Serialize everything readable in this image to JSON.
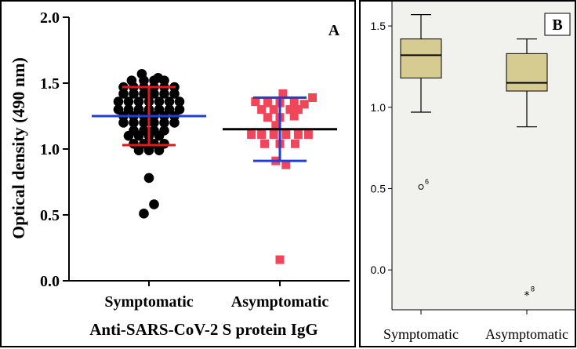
{
  "chart_data": [
    {
      "type": "scatter",
      "panel_label": "A",
      "ylabel": "Optical density (490 nm)",
      "xlabel": "Anti-SARS-CoV-2 S protein IgG",
      "ylim": [
        0.0,
        2.0
      ],
      "yticks": [
        "0.0",
        "0.5",
        "1.0",
        "1.5",
        "2.0"
      ],
      "categories": [
        "Symptomatic",
        "Asymptomatic"
      ],
      "series": [
        {
          "category": "Symptomatic",
          "marker": "circle",
          "color": "#000000",
          "mean": 1.25,
          "sd_low": 1.03,
          "sd_high": 1.47,
          "mean_color": "#1f3fd6",
          "sd_color": "#e0191f",
          "points": [
            {
              "o": -0.07,
              "y": 1.57
            },
            {
              "o": 0.09,
              "y": 1.54
            },
            {
              "o": -0.17,
              "y": 1.52
            },
            {
              "o": -0.05,
              "y": 1.52
            },
            {
              "o": 0.05,
              "y": 1.52
            },
            {
              "o": 0.15,
              "y": 1.52
            },
            {
              "o": -0.25,
              "y": 1.47
            },
            {
              "o": -0.15,
              "y": 1.47
            },
            {
              "o": -0.05,
              "y": 1.47
            },
            {
              "o": 0.05,
              "y": 1.47
            },
            {
              "o": 0.15,
              "y": 1.47
            },
            {
              "o": 0.25,
              "y": 1.47
            },
            {
              "o": -0.25,
              "y": 1.42
            },
            {
              "o": -0.15,
              "y": 1.42
            },
            {
              "o": -0.05,
              "y": 1.42
            },
            {
              "o": 0.05,
              "y": 1.42
            },
            {
              "o": 0.15,
              "y": 1.42
            },
            {
              "o": 0.25,
              "y": 1.42
            },
            {
              "o": -0.3,
              "y": 1.36
            },
            {
              "o": -0.2,
              "y": 1.36
            },
            {
              "o": -0.1,
              "y": 1.36
            },
            {
              "o": 0.0,
              "y": 1.36
            },
            {
              "o": 0.1,
              "y": 1.36
            },
            {
              "o": 0.2,
              "y": 1.36
            },
            {
              "o": 0.3,
              "y": 1.36
            },
            {
              "o": -0.3,
              "y": 1.3
            },
            {
              "o": -0.2,
              "y": 1.3
            },
            {
              "o": -0.1,
              "y": 1.3
            },
            {
              "o": 0.0,
              "y": 1.3
            },
            {
              "o": 0.1,
              "y": 1.3
            },
            {
              "o": 0.2,
              "y": 1.3
            },
            {
              "o": 0.3,
              "y": 1.3
            },
            {
              "o": -0.25,
              "y": 1.25
            },
            {
              "o": -0.15,
              "y": 1.25
            },
            {
              "o": -0.05,
              "y": 1.25
            },
            {
              "o": 0.05,
              "y": 1.25
            },
            {
              "o": 0.15,
              "y": 1.25
            },
            {
              "o": 0.25,
              "y": 1.25
            },
            {
              "o": -0.25,
              "y": 1.2
            },
            {
              "o": -0.15,
              "y": 1.2
            },
            {
              "o": -0.05,
              "y": 1.2
            },
            {
              "o": 0.05,
              "y": 1.2
            },
            {
              "o": 0.15,
              "y": 1.2
            },
            {
              "o": 0.25,
              "y": 1.2
            },
            {
              "o": -0.15,
              "y": 1.14
            },
            {
              "o": -0.05,
              "y": 1.14
            },
            {
              "o": 0.05,
              "y": 1.14
            },
            {
              "o": 0.15,
              "y": 1.14
            },
            {
              "o": -0.2,
              "y": 1.1
            },
            {
              "o": -0.1,
              "y": 1.1
            },
            {
              "o": 0.0,
              "y": 1.1
            },
            {
              "o": 0.1,
              "y": 1.1
            },
            {
              "o": -0.15,
              "y": 1.04
            },
            {
              "o": -0.05,
              "y": 1.04
            },
            {
              "o": 0.05,
              "y": 1.04
            },
            {
              "o": 0.15,
              "y": 1.04
            },
            {
              "o": -0.1,
              "y": 0.99
            },
            {
              "o": 0.0,
              "y": 0.99
            },
            {
              "o": 0.1,
              "y": 0.99
            },
            {
              "o": 0.0,
              "y": 0.78
            },
            {
              "o": 0.05,
              "y": 0.58
            },
            {
              "o": -0.05,
              "y": 0.51
            }
          ]
        },
        {
          "category": "Asymptomatic",
          "marker": "square",
          "color": "#f0465a",
          "mean": 1.15,
          "sd_low": 0.91,
          "sd_high": 1.39,
          "mean_color": "#000000",
          "sd_color": "#1f3fd6",
          "points": [
            {
              "o": 0.03,
              "y": 1.42
            },
            {
              "o": -0.24,
              "y": 1.36
            },
            {
              "o": -0.12,
              "y": 1.35
            },
            {
              "o": 0.0,
              "y": 1.35
            },
            {
              "o": 0.14,
              "y": 1.36
            },
            {
              "o": 0.32,
              "y": 1.39
            },
            {
              "o": 0.24,
              "y": 1.34
            },
            {
              "o": -0.18,
              "y": 1.3
            },
            {
              "o": -0.06,
              "y": 1.3
            },
            {
              "o": 0.1,
              "y": 1.3
            },
            {
              "o": 0.18,
              "y": 1.3
            },
            {
              "o": -0.12,
              "y": 1.24
            },
            {
              "o": 0.0,
              "y": 1.24
            },
            {
              "o": 0.14,
              "y": 1.25
            },
            {
              "o": -0.04,
              "y": 1.18
            },
            {
              "o": -0.28,
              "y": 1.11
            },
            {
              "o": -0.18,
              "y": 1.11
            },
            {
              "o": -0.06,
              "y": 1.11
            },
            {
              "o": 0.06,
              "y": 1.11
            },
            {
              "o": 0.18,
              "y": 1.11
            },
            {
              "o": 0.28,
              "y": 1.11
            },
            {
              "o": -0.15,
              "y": 1.04
            },
            {
              "o": 0.0,
              "y": 1.04
            },
            {
              "o": 0.15,
              "y": 1.04
            },
            {
              "o": -0.04,
              "y": 0.91
            },
            {
              "o": 0.06,
              "y": 0.88
            },
            {
              "o": 0.0,
              "y": 0.16
            }
          ]
        }
      ]
    },
    {
      "type": "box",
      "panel_label": "B",
      "ylim": [
        -0.25,
        1.65
      ],
      "yticks": [
        {
          "v": -0.0,
          "label": "0.0"
        },
        {
          "v": 0.5,
          "label": "0.5"
        },
        {
          "v": 1.0,
          "label": "1.0"
        },
        {
          "v": 1.5,
          "label": "1.5"
        }
      ],
      "categories": [
        "Symptomatic",
        "Asymptomatic"
      ],
      "box_fill": "#d6cc92",
      "plot_bg": "#f1f1ee",
      "boxes": [
        {
          "category": "Symptomatic",
          "whisker_low": 0.97,
          "q1": 1.18,
          "median": 1.32,
          "q3": 1.42,
          "whisker_high": 1.57,
          "outliers": [
            {
              "value": 0.51,
              "label": "6",
              "symbol": "circle"
            }
          ]
        },
        {
          "category": "Asymptomatic",
          "whisker_low": 0.88,
          "q1": 1.1,
          "median": 1.15,
          "q3": 1.33,
          "whisker_high": 1.42,
          "outliers": [
            {
              "value": -0.15,
              "label": "8",
              "symbol": "star"
            }
          ]
        }
      ]
    }
  ]
}
